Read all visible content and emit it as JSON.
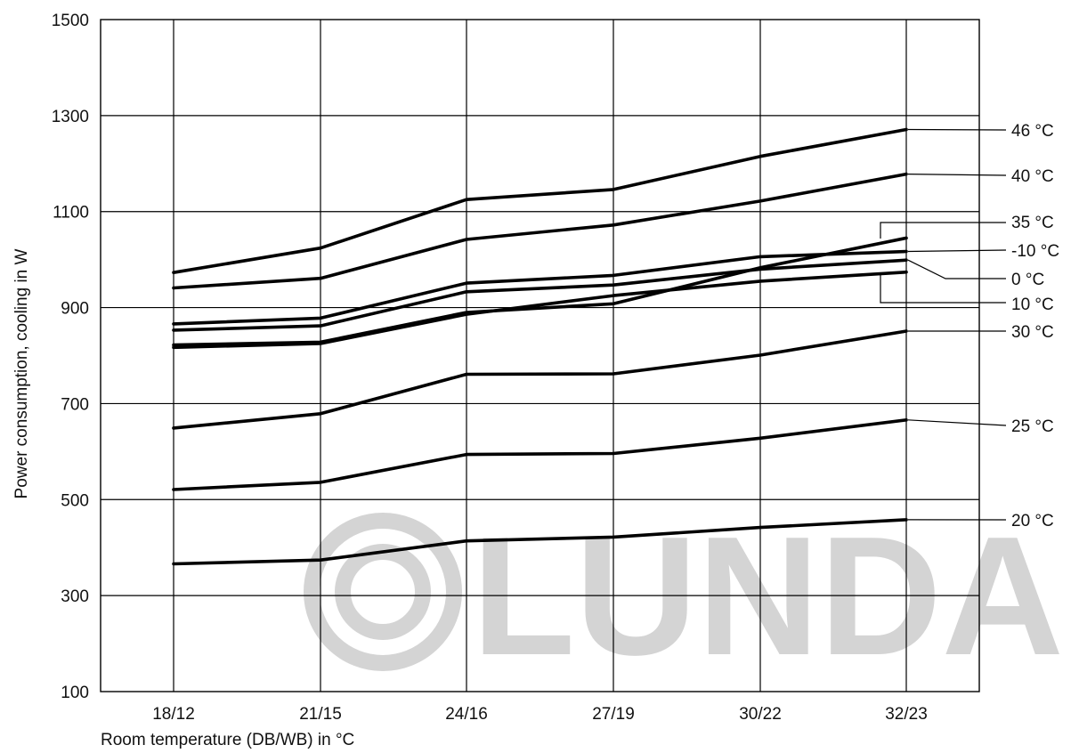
{
  "chart_data": {
    "type": "line",
    "title": "",
    "xlabel": "Room temperature (DB/WB) in °C",
    "ylabel": "Power consumption, cooling in W",
    "categories": [
      "18/12",
      "21/15",
      "24/16",
      "27/19",
      "30/22",
      "32/23"
    ],
    "ylim": [
      100,
      1500
    ],
    "yticks": [
      100,
      300,
      500,
      700,
      900,
      1100,
      1300,
      1500
    ],
    "grid": true,
    "legend": "right",
    "series": [
      {
        "name": "46 °C",
        "values": [
          973,
          1024,
          1125,
          1146,
          1215,
          1271
        ]
      },
      {
        "name": "40 °C",
        "values": [
          941,
          961,
          1042,
          1072,
          1122,
          1178
        ]
      },
      {
        "name": "35 °C",
        "values": [
          822,
          828,
          890,
          908,
          983,
          1045
        ]
      },
      {
        "name": "-10 °C",
        "values": [
          866,
          878,
          951,
          967,
          1006,
          1017
        ]
      },
      {
        "name": "0 °C",
        "values": [
          853,
          862,
          933,
          947,
          980,
          999
        ]
      },
      {
        "name": "10 °C",
        "values": [
          817,
          825,
          886,
          925,
          955,
          974
        ]
      },
      {
        "name": "30 °C",
        "values": [
          649,
          679,
          761,
          762,
          801,
          851
        ]
      },
      {
        "name": "25 °C",
        "values": [
          521,
          536,
          594,
          596,
          628,
          666
        ]
      },
      {
        "name": "20 °C",
        "values": [
          366,
          374,
          414,
          422,
          442,
          458
        ]
      }
    ]
  },
  "watermark": {
    "text": "LUNDA",
    "color": "#d4d4d4"
  }
}
